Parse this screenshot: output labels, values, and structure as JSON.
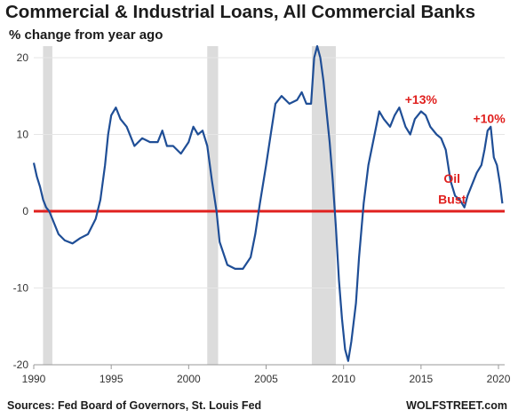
{
  "chart_data": {
    "type": "line",
    "title": "Commercial & Industrial Loans, All Commercial Banks",
    "subtitle": "% change from year ago",
    "source": "Sources: Fed Board of Governors, St. Louis Fed",
    "brand": "WOLFSTREET.com",
    "xlim": [
      1990,
      2020.4
    ],
    "ylim": [
      -20,
      21.5
    ],
    "x_ticks": [
      1990,
      1995,
      2000,
      2005,
      2010,
      2015,
      2020
    ],
    "y_ticks": [
      -20,
      -10,
      0,
      10,
      20
    ],
    "recessions": [
      [
        1990.6,
        1991.2
      ],
      [
        2001.2,
        2001.9
      ],
      [
        2007.95,
        2009.5
      ]
    ],
    "zero_line_color": "#e0201e",
    "line_color": "#1f4e96",
    "recession_color": "#dcdcdc",
    "annotations": [
      {
        "text": "+13%",
        "x": 2015.0,
        "y": 14.0
      },
      {
        "text": "+10%",
        "x": 2019.4,
        "y": 11.5
      },
      {
        "text": "Oil",
        "x": 2017.0,
        "y": 3.7
      },
      {
        "text": "Bust",
        "x": 2017.0,
        "y": 1.0
      }
    ],
    "series": [
      {
        "x": [
          1990.0,
          1990.2,
          1990.4,
          1990.6,
          1990.8,
          1991.0,
          1991.3,
          1991.6,
          1992.0,
          1992.5,
          1993.0,
          1993.5,
          1994.0,
          1994.3,
          1994.6,
          1994.8,
          1995.0,
          1995.3,
          1995.6,
          1996.0,
          1996.5,
          1997.0,
          1997.5,
          1998.0,
          1998.3,
          1998.6,
          1999.0,
          1999.5,
          2000.0,
          2000.3,
          2000.6,
          2000.9,
          2001.2,
          2001.5,
          2001.8,
          2002.0,
          2002.5,
          2003.0,
          2003.5,
          2004.0,
          2004.3,
          2004.6,
          2005.0,
          2005.3,
          2005.6,
          2006.0,
          2006.5,
          2007.0,
          2007.3,
          2007.6,
          2007.9,
          2008.1,
          2008.3,
          2008.5,
          2008.7,
          2008.9,
          2009.1,
          2009.3,
          2009.5,
          2009.7,
          2009.9,
          2010.1,
          2010.3,
          2010.5,
          2010.8,
          2011.0,
          2011.3,
          2011.6,
          2012.0,
          2012.3,
          2012.6,
          2013.0,
          2013.3,
          2013.6,
          2014.0,
          2014.3,
          2014.6,
          2015.0,
          2015.3,
          2015.6,
          2016.0,
          2016.3,
          2016.6,
          2016.9,
          2017.2,
          2017.5,
          2017.8,
          2018.0,
          2018.3,
          2018.6,
          2018.9,
          2019.1,
          2019.3,
          2019.5,
          2019.7,
          2019.9,
          2020.1,
          2020.25
        ],
        "y": [
          6.3,
          4.5,
          3.2,
          1.5,
          0.5,
          0.0,
          -1.5,
          -3.0,
          -3.8,
          -4.2,
          -3.5,
          -3.0,
          -1.0,
          1.5,
          6.0,
          10.0,
          12.5,
          13.5,
          12.0,
          11.0,
          8.5,
          9.5,
          9.0,
          9.0,
          10.5,
          8.5,
          8.5,
          7.5,
          9.0,
          11.0,
          10.0,
          10.5,
          8.5,
          4.0,
          0.0,
          -4.0,
          -7.0,
          -7.5,
          -7.5,
          -6.0,
          -3.0,
          1.0,
          6.0,
          10.0,
          14.0,
          15.0,
          14.0,
          14.5,
          15.5,
          14.0,
          14.0,
          20.0,
          21.5,
          20.0,
          17.0,
          13.0,
          9.0,
          4.0,
          -2.0,
          -9.0,
          -14.0,
          -18.0,
          -19.5,
          -17.0,
          -12.0,
          -6.0,
          1.0,
          6.0,
          10.0,
          13.0,
          12.0,
          11.0,
          12.5,
          13.5,
          11.0,
          10.0,
          12.0,
          13.0,
          12.5,
          11.0,
          10.0,
          9.5,
          8.0,
          4.0,
          2.0,
          1.5,
          0.5,
          2.0,
          3.5,
          5.0,
          6.0,
          8.0,
          10.5,
          11.0,
          7.0,
          6.0,
          3.5,
          1.0
        ]
      }
    ]
  }
}
